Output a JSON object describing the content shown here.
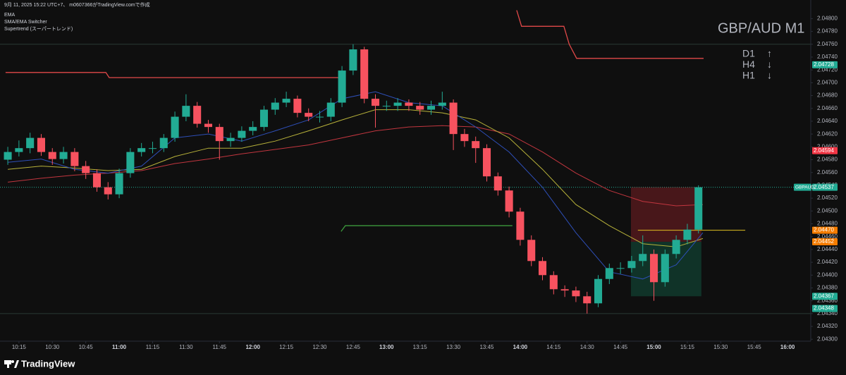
{
  "header": {
    "caption": "9月 11, 2025 15:22 UTC+7、 m0607366がTradingView.comで作成",
    "indicators": [
      "EMA",
      "SMA/EMA Switcher",
      "Supertrend (スーパートレンド)"
    ]
  },
  "chart_data": {
    "type": "candlestick",
    "title": "GBP/AUD M1",
    "trend_panel": [
      {
        "timeframe": "D1",
        "direction": "↑"
      },
      {
        "timeframe": "H4",
        "direction": "↓"
      },
      {
        "timeframe": "H1",
        "direction": "↓"
      }
    ],
    "up_color": "#22ab94",
    "down_color": "#f7525f",
    "grid": false,
    "xlim": [
      606.5,
      970.4
    ],
    "ylim": [
      2.04297,
      2.04829
    ],
    "xticks": [
      {
        "value": 615,
        "label": "10:15"
      },
      {
        "value": 630,
        "label": "10:30"
      },
      {
        "value": 645,
        "label": "10:45"
      },
      {
        "value": 660,
        "label": "11:00"
      },
      {
        "value": 675,
        "label": "11:15"
      },
      {
        "value": 690,
        "label": "11:30"
      },
      {
        "value": 705,
        "label": "11:45"
      },
      {
        "value": 720,
        "label": "12:00"
      },
      {
        "value": 735,
        "label": "12:15"
      },
      {
        "value": 750,
        "label": "12:30"
      },
      {
        "value": 765,
        "label": "12:45"
      },
      {
        "value": 780,
        "label": "13:00"
      },
      {
        "value": 795,
        "label": "13:15"
      },
      {
        "value": 810,
        "label": "13:30"
      },
      {
        "value": 825,
        "label": "13:45"
      },
      {
        "value": 840,
        "label": "14:00"
      },
      {
        "value": 855,
        "label": "14:15"
      },
      {
        "value": 870,
        "label": "14:30"
      },
      {
        "value": 885,
        "label": "14:45"
      },
      {
        "value": 900,
        "label": "15:00"
      },
      {
        "value": 915,
        "label": "15:15"
      },
      {
        "value": 930,
        "label": "15:30"
      },
      {
        "value": 945,
        "label": "15:45"
      },
      {
        "value": 960,
        "label": "16:00"
      }
    ],
    "yticks": [
      {
        "value": 2.043,
        "label": "2.04300"
      },
      {
        "value": 2.0432,
        "label": "2.04320"
      },
      {
        "value": 2.0434,
        "label": "2.04340"
      },
      {
        "value": 2.0436,
        "label": "2.04360"
      },
      {
        "value": 2.0438,
        "label": "2.04380"
      },
      {
        "value": 2.044,
        "label": "2.04400"
      },
      {
        "value": 2.0442,
        "label": "2.04420"
      },
      {
        "value": 2.0444,
        "label": "2.04440"
      },
      {
        "value": 2.0446,
        "label": "2.04460"
      },
      {
        "value": 2.0448,
        "label": "2.04480"
      },
      {
        "value": 2.045,
        "label": "2.04500"
      },
      {
        "value": 2.0452,
        "label": "2.04520"
      },
      {
        "value": 2.0454,
        "label": "2.04540"
      },
      {
        "value": 2.0456,
        "label": "2.04560"
      },
      {
        "value": 2.0458,
        "label": "2.04580"
      },
      {
        "value": 2.046,
        "label": "2.04600"
      },
      {
        "value": 2.0462,
        "label": "2.04620"
      },
      {
        "value": 2.0464,
        "label": "2.04640"
      },
      {
        "value": 2.0466,
        "label": "2.04660"
      },
      {
        "value": 2.0468,
        "label": "2.04680"
      },
      {
        "value": 2.047,
        "label": "2.04700"
      },
      {
        "value": 2.0472,
        "label": "2.04720"
      },
      {
        "value": 2.0474,
        "label": "2.04740"
      },
      {
        "value": 2.0476,
        "label": "2.04760"
      },
      {
        "value": 2.0478,
        "label": "2.04780"
      },
      {
        "value": 2.048,
        "label": "2.04800"
      }
    ],
    "x": [
      610,
      615,
      620,
      625,
      630,
      635,
      640,
      645,
      650,
      655,
      660,
      665,
      670,
      675,
      680,
      685,
      690,
      695,
      700,
      705,
      710,
      715,
      720,
      725,
      730,
      735,
      740,
      745,
      750,
      755,
      760,
      765,
      770,
      775,
      780,
      785,
      790,
      795,
      800,
      805,
      810,
      815,
      820,
      825,
      830,
      835,
      840,
      845,
      850,
      855,
      860,
      865,
      870,
      875,
      880,
      885,
      890,
      895,
      900,
      905,
      910,
      915,
      920
    ],
    "open": [
      2.0458,
      2.04592,
      2.04598,
      2.04614,
      2.04592,
      2.04581,
      2.04592,
      2.0457,
      2.04559,
      2.04537,
      2.04526,
      2.04559,
      2.04592,
      2.04598,
      2.04598,
      2.04614,
      2.04647,
      2.04664,
      2.04636,
      2.04631,
      2.04609,
      2.04614,
      2.04625,
      2.04631,
      2.04658,
      2.04669,
      2.04675,
      2.04653,
      2.04647,
      2.04647,
      2.04669,
      2.04719,
      2.04752,
      2.04675,
      2.04664,
      2.04664,
      2.04669,
      2.04664,
      2.04658,
      2.04664,
      2.04669,
      2.0462,
      2.04609,
      2.04598,
      2.04554,
      2.04532,
      2.04499,
      2.04455,
      2.04422,
      2.044,
      2.04378,
      2.04376,
      2.04367,
      2.04356,
      2.04394,
      2.04411,
      2.04411,
      2.04422,
      2.04433,
      2.04389,
      2.04433,
      2.04455,
      2.04471
    ],
    "high": [
      2.046,
      2.0461,
      2.04622,
      2.0462,
      2.04598,
      2.046,
      2.04598,
      2.04578,
      2.04565,
      2.04545,
      2.04566,
      2.04598,
      2.04606,
      2.04608,
      2.0462,
      2.04655,
      2.04682,
      2.0467,
      2.04642,
      2.04636,
      2.04622,
      2.04632,
      2.0464,
      2.04664,
      2.04676,
      2.04686,
      2.0468,
      2.0466,
      2.04656,
      2.04676,
      2.04726,
      2.0476,
      2.04756,
      2.04682,
      2.04672,
      2.04676,
      2.04674,
      2.0467,
      2.04672,
      2.04686,
      2.04674,
      2.04628,
      2.04616,
      2.04604,
      2.0456,
      2.04538,
      2.04505,
      2.04462,
      2.04428,
      2.04406,
      2.04384,
      2.04382,
      2.04374,
      2.044,
      2.04418,
      2.0442,
      2.0443,
      2.04462,
      2.0444,
      2.0444,
      2.04462,
      2.0448,
      2.0454
    ],
    "low": [
      2.04572,
      2.04585,
      2.0459,
      2.04586,
      2.04572,
      2.04574,
      2.04562,
      2.0455,
      2.0453,
      2.04518,
      2.0452,
      2.04552,
      2.04585,
      2.0459,
      2.04592,
      2.04608,
      2.0464,
      2.0463,
      2.04622,
      2.0458,
      2.046,
      2.04608,
      2.04618,
      2.04625,
      2.0465,
      2.04662,
      2.04646,
      2.0464,
      2.04638,
      2.0464,
      2.04662,
      2.04712,
      2.04668,
      2.0463,
      2.04656,
      2.04656,
      2.04656,
      2.0465,
      2.0465,
      2.04658,
      2.04595,
      2.046,
      2.04575,
      2.04546,
      2.04524,
      2.0449,
      2.04446,
      2.04414,
      2.04392,
      2.0437,
      2.04366,
      2.04358,
      2.0434,
      2.0435,
      2.04386,
      2.04402,
      2.04404,
      2.04414,
      2.0436,
      2.04382,
      2.04426,
      2.04448,
      2.04465
    ],
    "close": [
      2.04592,
      2.04598,
      2.04614,
      2.04592,
      2.04581,
      2.04592,
      2.0457,
      2.04559,
      2.04537,
      2.04526,
      2.04559,
      2.04592,
      2.04598,
      2.04598,
      2.04614,
      2.04647,
      2.04664,
      2.04636,
      2.04631,
      2.04609,
      2.04614,
      2.04625,
      2.04631,
      2.04658,
      2.04669,
      2.04675,
      2.04653,
      2.04647,
      2.04647,
      2.04669,
      2.04719,
      2.04752,
      2.04675,
      2.04664,
      2.04664,
      2.04669,
      2.04664,
      2.04658,
      2.04664,
      2.04669,
      2.0462,
      2.04609,
      2.04598,
      2.04554,
      2.04532,
      2.04499,
      2.04455,
      2.04422,
      2.044,
      2.04378,
      2.04376,
      2.04367,
      2.04356,
      2.04394,
      2.04411,
      2.04411,
      2.04422,
      2.04433,
      2.04389,
      2.04433,
      2.04455,
      2.04471,
      2.04537
    ],
    "lines": [
      {
        "color": "#c2363f",
        "width": 1,
        "x": [
          610,
          625,
          640,
          655,
          670,
          685,
          700,
          715,
          730,
          745,
          760,
          775,
          790,
          805,
          820,
          835,
          850,
          865,
          880,
          895,
          910,
          922
        ],
        "values": [
          2.04545,
          2.04551,
          2.04556,
          2.04559,
          2.04563,
          2.04574,
          2.04581,
          2.04589,
          2.04596,
          2.04603,
          2.04614,
          2.04625,
          2.04631,
          2.04633,
          2.04631,
          2.0462,
          2.04592,
          2.04559,
          2.04532,
          2.04515,
          2.04508,
          2.0451
        ]
      },
      {
        "color": "#b8b23a",
        "width": 1,
        "x": [
          610,
          625,
          640,
          655,
          670,
          685,
          700,
          715,
          730,
          745,
          760,
          775,
          790,
          805,
          820,
          835,
          850,
          865,
          880,
          895,
          910,
          922
        ],
        "values": [
          2.04565,
          2.0457,
          2.04567,
          2.04563,
          2.04565,
          2.04585,
          2.04598,
          2.04598,
          2.04609,
          2.04625,
          2.04642,
          2.04658,
          2.04658,
          2.04653,
          2.04642,
          2.04614,
          2.04565,
          2.0451,
          2.04477,
          2.04449,
          2.04444,
          2.04457
        ]
      },
      {
        "color": "#2e4fb8",
        "width": 1,
        "x": [
          610,
          625,
          640,
          655,
          670,
          685,
          700,
          715,
          730,
          745,
          760,
          775,
          790,
          805,
          820,
          835,
          850,
          865,
          880,
          895,
          910,
          922
        ],
        "values": [
          2.04576,
          2.04581,
          2.04565,
          2.04559,
          2.0457,
          2.04614,
          2.0462,
          2.04609,
          2.04625,
          2.04642,
          2.04675,
          2.04686,
          2.04669,
          2.04664,
          2.04631,
          2.04592,
          2.04537,
          2.04466,
          2.04405,
          2.04394,
          2.04416,
          2.04466
        ]
      },
      {
        "color": "#e04848",
        "width": 1.3,
        "x": [
          609,
          654,
          655.5,
          758.4
        ],
        "values": [
          2.04716,
          2.04716,
          2.04708,
          2.04708
        ]
      },
      {
        "color": "#e04848",
        "width": 1.3,
        "x": [
          838.4,
          840.6,
          859.6,
          862,
          865.3,
          922.3
        ],
        "values": [
          2.04813,
          2.04788,
          2.04788,
          2.0476,
          2.04738,
          2.04738
        ]
      },
      {
        "color": "#3c9a3c",
        "width": 1.3,
        "x": [
          759.6,
          761.5,
          836.5
        ],
        "values": [
          2.04468,
          2.04477,
          2.04477
        ]
      },
      {
        "color": "#e0c020",
        "width": 1,
        "x": [
          892.8,
          941
        ],
        "values": [
          2.0447,
          2.0447
        ]
      }
    ],
    "hlines": [
      {
        "value": 2.0476,
        "color": "#2a3a34",
        "dash": false
      },
      {
        "value": 2.0434,
        "color": "#2a3a34",
        "dash": false
      },
      {
        "value": 2.04537,
        "color": "#22ab94",
        "dash": true
      }
    ],
    "position": {
      "x_start": 889.7,
      "x_end": 921.3,
      "stop": 2.04537,
      "entry": 2.04452,
      "target": 2.04367
    },
    "price_labels": [
      {
        "value": 2.04728,
        "label": "2.04728",
        "color": "#22ab94"
      },
      {
        "value": 2.04594,
        "label": "2.04594",
        "color": "#f23645"
      },
      {
        "value": 2.04537,
        "label": "2.04537",
        "color": "#22ab94",
        "tag": "GBPAUD"
      },
      {
        "value": 2.0447,
        "label": "2.04470",
        "color": "#f57c00"
      },
      {
        "value": 2.04452,
        "label": "2.04452",
        "color": "#f57c00"
      },
      {
        "value": 2.04367,
        "label": "2.04367",
        "color": "#22ab94"
      },
      {
        "value": 2.04348,
        "label": "2.04348",
        "color": "#22ab94"
      }
    ]
  },
  "footer": {
    "brand": "TradingView"
  }
}
